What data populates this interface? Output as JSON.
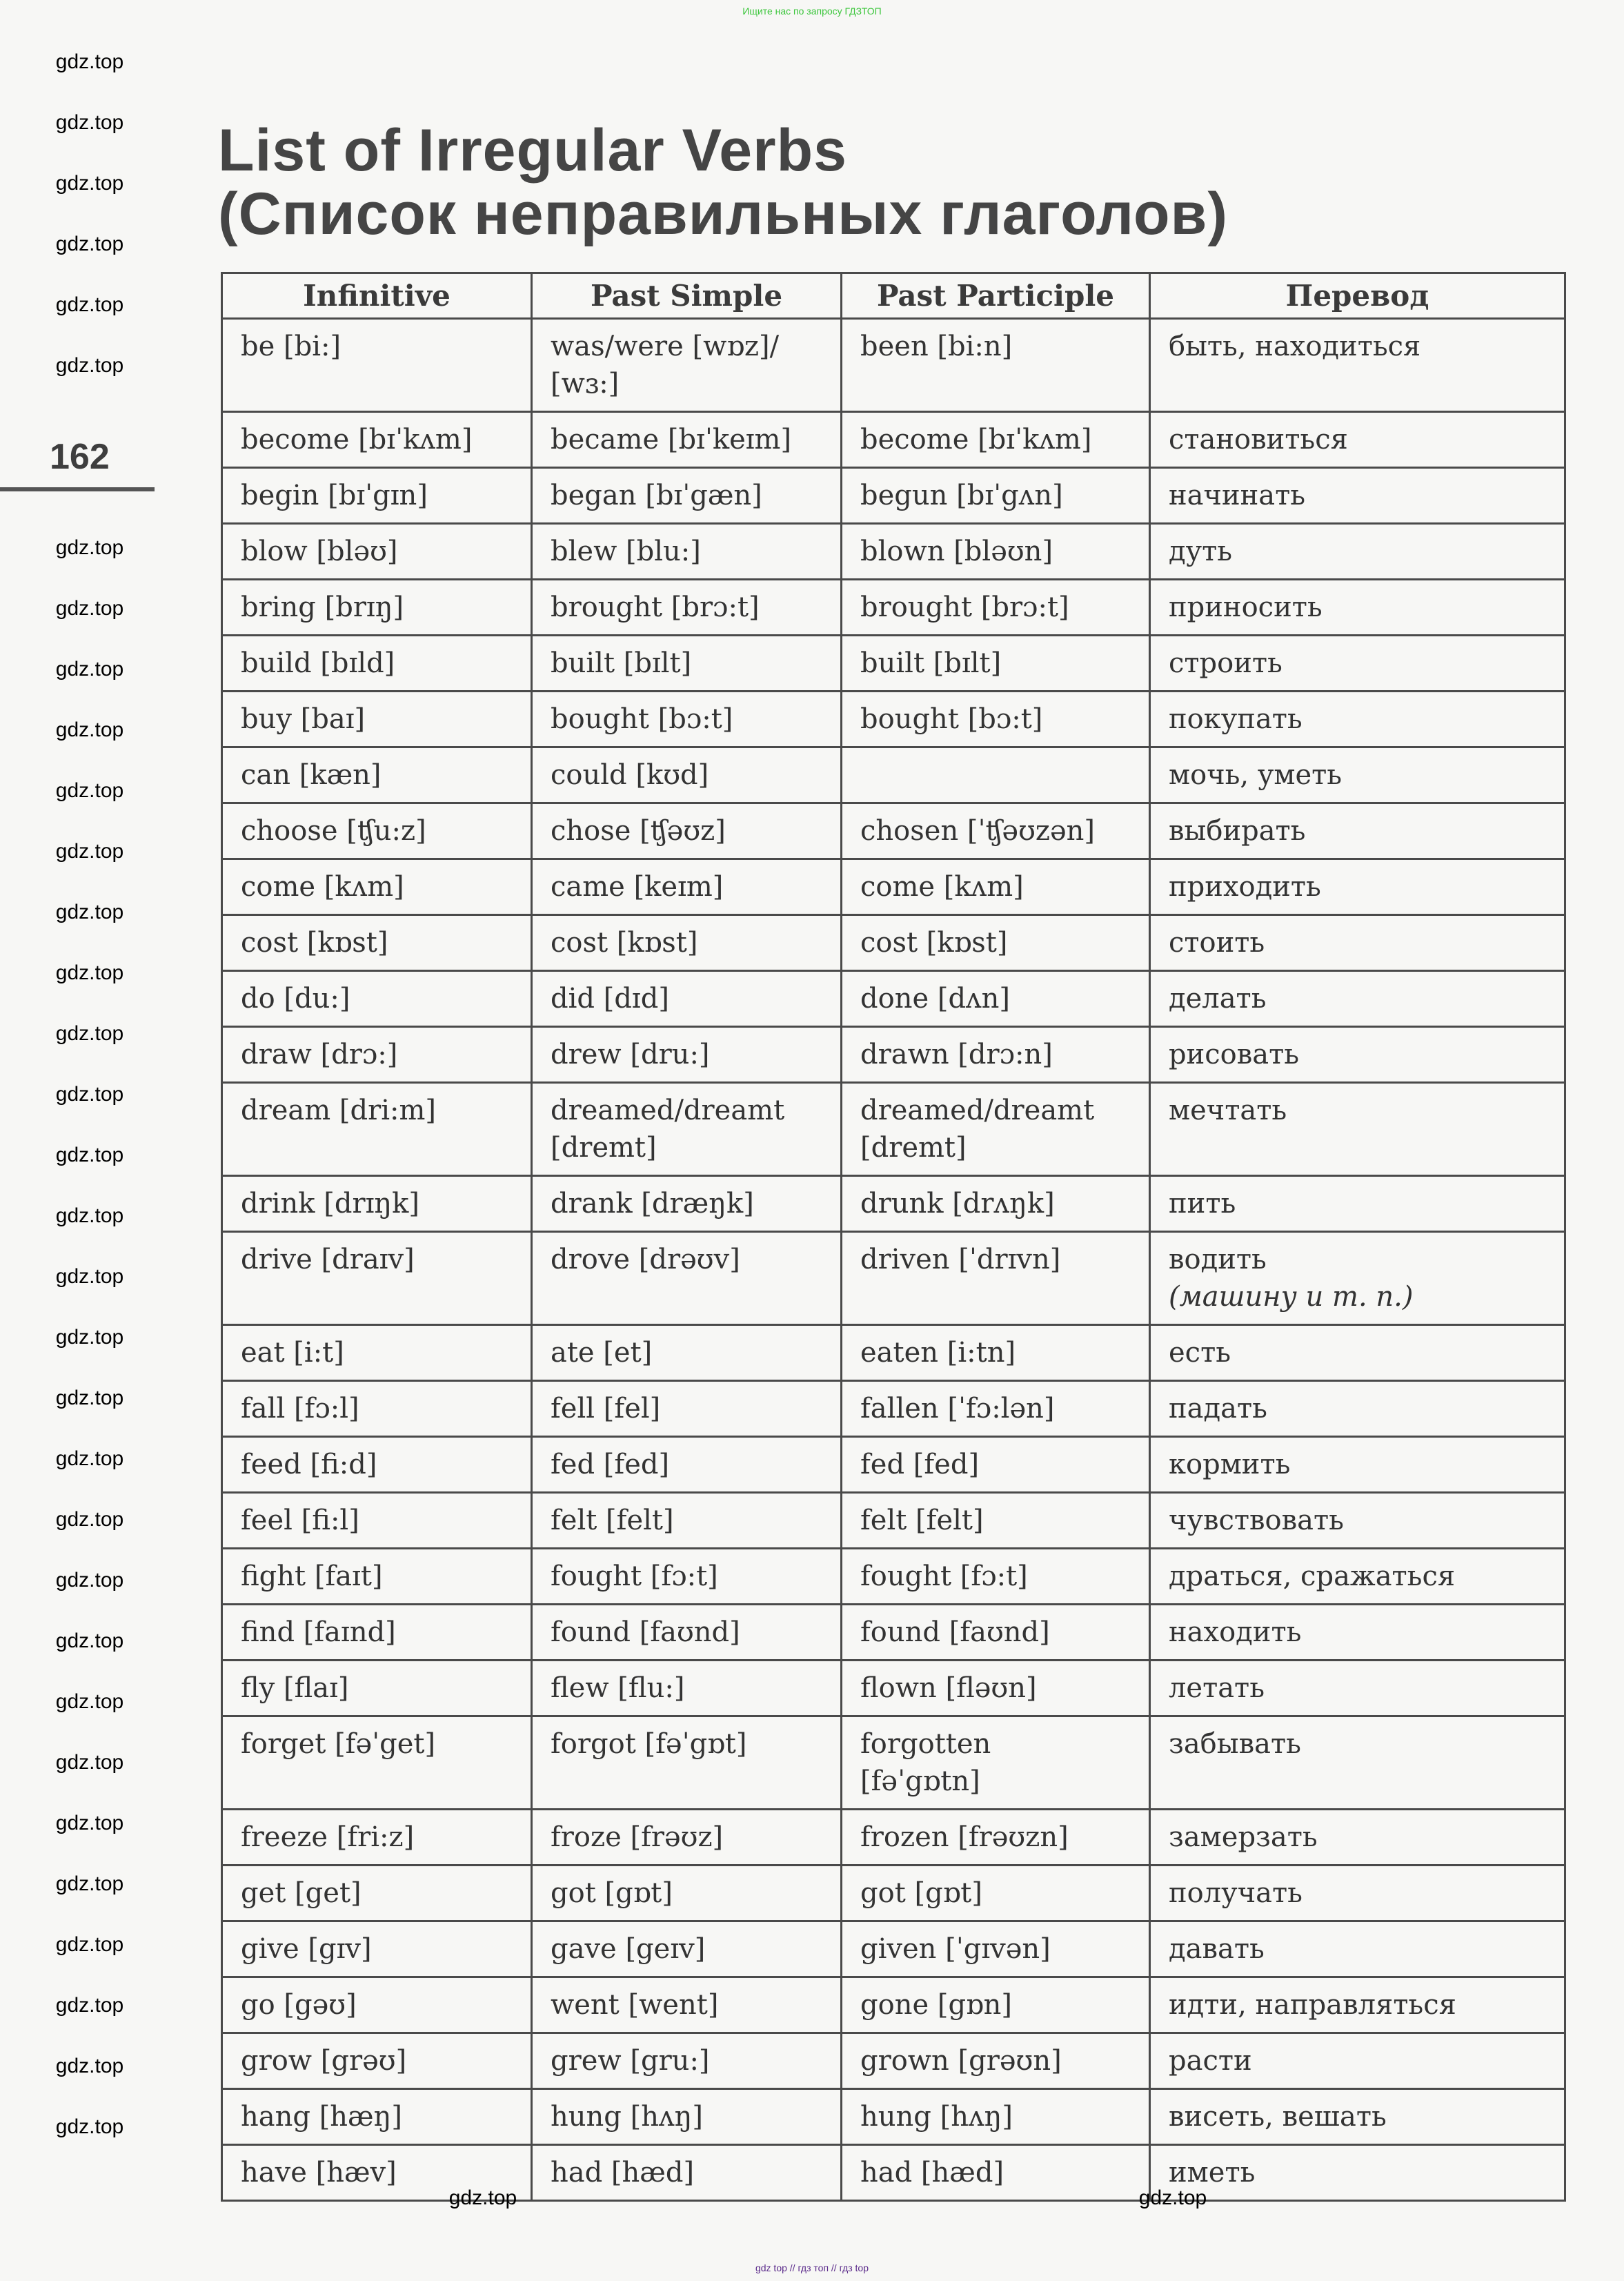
{
  "top_banner": "Ищите нас по запросу ГДЗТОП",
  "bottom_banner": "gdz top  //  гдз топ  //  гдз top",
  "watermark": "gdz.top",
  "title_line1": "List of Irregular Verbs",
  "title_line2": "(Список неправильных глаголов)",
  "page_number": "162",
  "table": {
    "headers": [
      "Infinitive",
      "Past Simple",
      "Past Participle",
      "Перевод"
    ],
    "rows": [
      {
        "inf": "be [bi:]",
        "past": "was/were [wɒz]/\n[wɜ:]",
        "pp": "been [bi:n]",
        "tr": "быть, находиться"
      },
      {
        "inf": "become [bɪˈkʌm]",
        "past": "became [bɪˈkeɪm]",
        "pp": "become [bɪˈkʌm]",
        "tr": "становиться"
      },
      {
        "inf": "begin [bɪˈgɪn]",
        "past": "began [bɪˈgæn]",
        "pp": "begun [bɪˈgʌn]",
        "tr": "начинать"
      },
      {
        "inf": "blow [bləʊ]",
        "past": "blew [blu:]",
        "pp": "blown [bləʊn]",
        "tr": "дуть"
      },
      {
        "inf": "bring [brɪŋ]",
        "past": "brought [brɔ:t]",
        "pp": "brought [brɔ:t]",
        "tr": "приносить"
      },
      {
        "inf": "build [bɪld]",
        "past": "built [bɪlt]",
        "pp": "built [bɪlt]",
        "tr": "строить"
      },
      {
        "inf": "buy [baɪ]",
        "past": "bought [bɔ:t]",
        "pp": "bought [bɔ:t]",
        "tr": "покупать"
      },
      {
        "inf": "can [kæn]",
        "past": "could [kʊd]",
        "pp": "",
        "tr": "мочь, уметь"
      },
      {
        "inf": "choose [ʧu:z]",
        "past": "chose [ʧəʊz]",
        "pp": "chosen [ˈʧəʊzən]",
        "tr": "выбирать"
      },
      {
        "inf": "come [kʌm]",
        "past": "came [keɪm]",
        "pp": "come [kʌm]",
        "tr": "приходить"
      },
      {
        "inf": "cost [kɒst]",
        "past": "cost [kɒst]",
        "pp": "cost [kɒst]",
        "tr": "стоить"
      },
      {
        "inf": "do [du:]",
        "past": "did [dɪd]",
        "pp": "done [dʌn]",
        "tr": "делать"
      },
      {
        "inf": "draw [drɔ:]",
        "past": "drew [dru:]",
        "pp": "drawn [drɔ:n]",
        "tr": "рисовать"
      },
      {
        "inf": "dream [dri:m]",
        "past": "dreamed/dreamt\n[dremt]",
        "pp": "dreamed/dreamt\n[dremt]",
        "tr": "мечтать"
      },
      {
        "inf": "drink [drɪŋk]",
        "past": "drank [dræŋk]",
        "pp": "drunk [drʌŋk]",
        "tr": "пить"
      },
      {
        "inf": "drive [draɪv]",
        "past": "drove [drəʊv]",
        "pp": "driven [ˈdrɪvn]",
        "tr": "водить",
        "tr_note": "(машину и т. п.)"
      },
      {
        "inf": "eat [i:t]",
        "past": "ate [et]",
        "pp": "eaten [i:tn]",
        "tr": "есть"
      },
      {
        "inf": "fall [fɔ:l]",
        "past": "fell [fel]",
        "pp": "fallen [ˈfɔ:lən]",
        "tr": "падать"
      },
      {
        "inf": "feed [fi:d]",
        "past": "fed [fed]",
        "pp": "fed [fed]",
        "tr": "кормить"
      },
      {
        "inf": "feel [fi:l]",
        "past": "felt [felt]",
        "pp": "felt [felt]",
        "tr": "чувствовать"
      },
      {
        "inf": "fight [faɪt]",
        "past": "fought [fɔ:t]",
        "pp": "fought [fɔ:t]",
        "tr": "драться, сражаться"
      },
      {
        "inf": "find [faɪnd]",
        "past": "found [faʊnd]",
        "pp": "found [faʊnd]",
        "tr": "находить"
      },
      {
        "inf": "fly [flaɪ]",
        "past": "flew [flu:]",
        "pp": "flown [fləʊn]",
        "tr": "летать"
      },
      {
        "inf": "forget [fəˈget]",
        "past": "forgot [fəˈgɒt]",
        "pp": "forgotten\n[fəˈgɒtn]",
        "tr": "забывать"
      },
      {
        "inf": "freeze [fri:z]",
        "past": "froze [frəʊz]",
        "pp": "frozen [frəʊzn]",
        "tr": "замерзать"
      },
      {
        "inf": "get [get]",
        "past": "got [gɒt]",
        "pp": "got [gɒt]",
        "tr": "получать"
      },
      {
        "inf": "give [gɪv]",
        "past": "gave [geɪv]",
        "pp": "given [ˈgɪvən]",
        "tr": "давать"
      },
      {
        "inf": "go [gəʊ]",
        "past": "went [went]",
        "pp": "gone [gɒn]",
        "tr": "идти, направляться"
      },
      {
        "inf": "grow [grəʊ]",
        "past": "grew [gru:]",
        "pp": "grown [grəʊn]",
        "tr": "расти"
      },
      {
        "inf": "hang [hæŋ]",
        "past": "hung [hʌŋ]",
        "pp": "hung [hʌŋ]",
        "tr": "висеть, вешать"
      },
      {
        "inf": "have [hæv]",
        "past": "had [hæd]",
        "pp": "had [hæd]",
        "tr": "иметь"
      }
    ]
  }
}
